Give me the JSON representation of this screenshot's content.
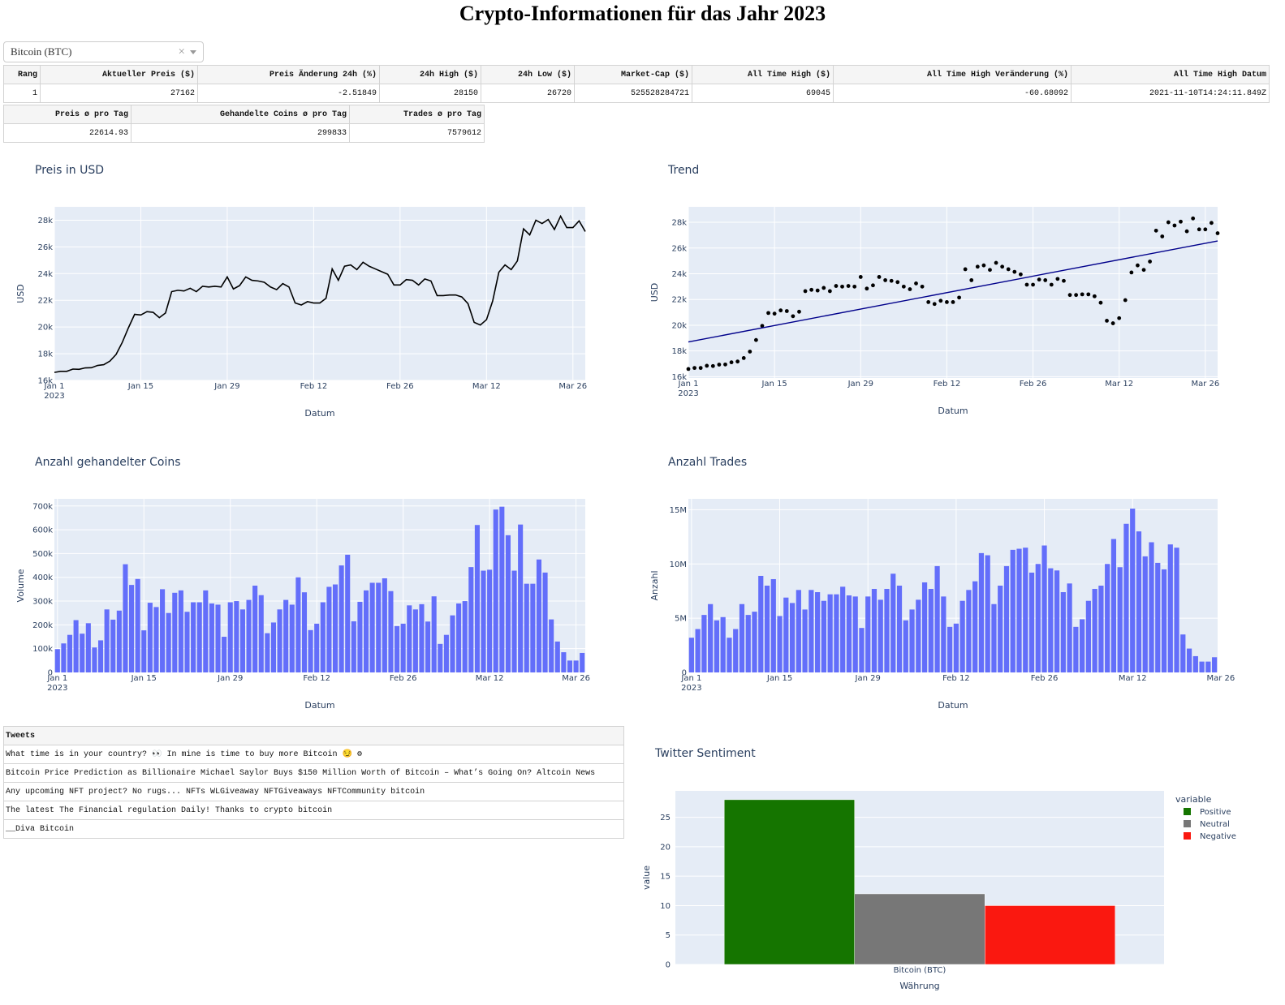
{
  "title": "Crypto-Informationen für das Jahr 2023",
  "dropdown": {
    "value": "Bitcoin (BTC)"
  },
  "table_main": {
    "headers": [
      "Rang",
      "Aktueller Preis ($)",
      "Preis Änderung 24h (%)",
      "24h High ($)",
      "24h Low ($)",
      "Market-Cap ($)",
      "All Time High ($)",
      "All Time High Veränderung (%)",
      "All Time High Datum"
    ],
    "row": [
      "1",
      "27162",
      "-2.51849",
      "28150",
      "26720",
      "525528284721",
      "69045",
      "-60.68092",
      "2021-11-10T14:24:11.849Z"
    ]
  },
  "table_avg": {
    "headers": [
      "Preis ø pro Tag",
      "Gehandelte Coins ø pro Tag",
      "Trades ø pro Tag"
    ],
    "row": [
      "22614.93",
      "299833",
      "7579612"
    ]
  },
  "x_ticks": [
    "Jan 1",
    "Jan 15",
    "Jan 29",
    "Feb 12",
    "Feb 26",
    "Mar 12",
    "Mar 26"
  ],
  "x_year": "2023",
  "chart_data": [
    {
      "type": "line",
      "title": "Preis in USD",
      "xlabel": "Datum",
      "ylabel": "USD",
      "ylim": [
        16000,
        29000
      ],
      "yticks": [
        16000,
        18000,
        20000,
        22000,
        24000,
        26000,
        28000
      ],
      "ytick_labels": [
        "16k",
        "18k",
        "20k",
        "22k",
        "24k",
        "26k",
        "28k"
      ],
      "x_start": "2023-01-01",
      "series": [
        {
          "values": [
            16600,
            16680,
            16680,
            16850,
            16830,
            16940,
            16950,
            17120,
            17180,
            17450,
            17950,
            18850,
            19950,
            20950,
            20900,
            21150,
            21100,
            20700,
            21050,
            22650,
            22750,
            22700,
            22900,
            22650,
            23050,
            23000,
            23050,
            23000,
            23750,
            22850,
            23100,
            23750,
            23500,
            23450,
            23350,
            23000,
            22800,
            23250,
            23000,
            21800,
            21650,
            21900,
            21800,
            21800,
            22150,
            24350,
            23500,
            24550,
            24650,
            24300,
            24850,
            24550,
            24350,
            24150,
            23950,
            23150,
            23150,
            23550,
            23500,
            23150,
            23600,
            23450,
            22350,
            22350,
            22400,
            22400,
            22250,
            21750,
            20350,
            20150,
            20550,
            21950,
            24100,
            24650,
            24300,
            24950,
            27350,
            26900,
            28000,
            27750,
            28050,
            27300,
            28300,
            27450,
            27450,
            27950,
            27150
          ]
        }
      ]
    },
    {
      "type": "scatter",
      "title": "Trend",
      "xlabel": "Datum",
      "ylabel": "USD",
      "ylim": [
        15900,
        29200
      ],
      "yticks": [
        16000,
        18000,
        20000,
        22000,
        24000,
        26000,
        28000
      ],
      "ytick_labels": [
        "16k",
        "18k",
        "20k",
        "22k",
        "24k",
        "26k",
        "28k"
      ],
      "x_start": "2023-01-01",
      "trend": [
        18700,
        26550
      ],
      "series": [
        {
          "values": [
            16600,
            16680,
            16680,
            16850,
            16830,
            16940,
            16950,
            17120,
            17180,
            17450,
            17950,
            18850,
            19950,
            20950,
            20900,
            21150,
            21100,
            20700,
            21050,
            22650,
            22750,
            22700,
            22900,
            22650,
            23050,
            23000,
            23050,
            23000,
            23750,
            22850,
            23100,
            23750,
            23500,
            23450,
            23350,
            23000,
            22800,
            23250,
            23000,
            21800,
            21650,
            21900,
            21800,
            21800,
            22150,
            24350,
            23500,
            24550,
            24650,
            24300,
            24850,
            24550,
            24350,
            24150,
            23950,
            23150,
            23150,
            23550,
            23500,
            23150,
            23600,
            23450,
            22350,
            22350,
            22400,
            22400,
            22250,
            21750,
            20350,
            20150,
            20550,
            21950,
            24100,
            24650,
            24300,
            24950,
            27350,
            26900,
            28000,
            27750,
            28050,
            27300,
            28300,
            27450,
            27450,
            27950,
            27150
          ]
        }
      ]
    },
    {
      "type": "bar",
      "title": "Anzahl gehandelter Coins",
      "xlabel": "Datum",
      "ylabel": "Volume",
      "ylim": [
        0,
        730000
      ],
      "yticks": [
        0,
        100000,
        200000,
        300000,
        400000,
        500000,
        600000,
        700000
      ],
      "ytick_labels": [
        "0",
        "100k",
        "200k",
        "300k",
        "400k",
        "500k",
        "600k",
        "700k"
      ],
      "x_start": "2023-01-01",
      "series": [
        {
          "values": [
            98000,
            122000,
            158000,
            220000,
            163000,
            207000,
            105000,
            135000,
            265000,
            222000,
            260000,
            455000,
            368000,
            393000,
            177000,
            293000,
            275000,
            350000,
            250000,
            335000,
            345000,
            255000,
            295000,
            295000,
            345000,
            290000,
            285000,
            150000,
            295000,
            300000,
            265000,
            305000,
            365000,
            325000,
            165000,
            210000,
            265000,
            305000,
            285000,
            400000,
            337000,
            178000,
            205000,
            295000,
            360000,
            370000,
            450000,
            495000,
            215000,
            297000,
            345000,
            377000,
            377000,
            396000,
            342000,
            195000,
            205000,
            282000,
            265000,
            287000,
            214000,
            320000,
            120000,
            158000,
            240000,
            290000,
            300000,
            443000,
            620000,
            428000,
            432000,
            685000,
            697000,
            577000,
            428000,
            622000,
            373000,
            373000,
            475000,
            420000,
            223000,
            130000,
            85000,
            50000,
            50000,
            82000
          ]
        }
      ]
    },
    {
      "type": "bar",
      "title": "Anzahl Trades",
      "xlabel": "Datum",
      "ylabel": "Anzahl",
      "ylim": [
        0,
        16000000
      ],
      "yticks": [
        0,
        5000000,
        10000000,
        15000000
      ],
      "ytick_labels": [
        "0",
        "5M",
        "10M",
        "15M"
      ],
      "x_start": "2023-01-01",
      "series": [
        {
          "values": [
            3200000,
            4000000,
            5300000,
            6300000,
            4800000,
            5100000,
            3200000,
            4000000,
            6300000,
            5300000,
            5600000,
            8900000,
            8000000,
            8600000,
            5200000,
            6900000,
            6400000,
            7600000,
            5800000,
            7600000,
            7400000,
            6600000,
            7200000,
            7200000,
            7900000,
            7100000,
            7000000,
            4100000,
            7000000,
            7700000,
            6700000,
            7700000,
            9100000,
            8000000,
            4800000,
            5800000,
            6700000,
            8300000,
            7700000,
            9800000,
            7000000,
            4200000,
            4500000,
            6600000,
            7600000,
            8400000,
            11000000,
            10800000,
            6300000,
            8000000,
            9800000,
            11300000,
            11400000,
            11500000,
            9200000,
            10000000,
            11700000,
            9600000,
            9400000,
            7400000,
            8200000,
            4200000,
            4900000,
            6600000,
            7700000,
            8000000,
            10000000,
            12300000,
            9700000,
            13700000,
            15100000,
            13000000,
            10700000,
            12000000,
            10100000,
            9500000,
            11800000,
            11500000,
            3500000,
            2200000,
            1500000,
            1000000,
            1000000,
            1400000
          ]
        }
      ]
    },
    {
      "type": "bar",
      "title": "Twitter Sentiment",
      "xlabel": "Währung",
      "ylabel": "value",
      "ylim": [
        0,
        29.5
      ],
      "yticks": [
        0,
        5,
        10,
        15,
        20,
        25
      ],
      "ytick_labels": [
        "0",
        "5",
        "10",
        "15",
        "20",
        "25"
      ],
      "categories": [
        "Bitcoin (BTC)"
      ],
      "legend_title": "variable",
      "legend_position": "top-right",
      "series": [
        {
          "name": "Positive",
          "values": [
            28
          ],
          "color": "#157500"
        },
        {
          "name": "Neutral",
          "values": [
            12
          ],
          "color": "#777777"
        },
        {
          "name": "Negative",
          "values": [
            10
          ],
          "color": "#fa1810"
        }
      ]
    }
  ],
  "tweets": {
    "header": "Tweets",
    "rows": [
      "What time is in your country? 👀 In mine is time to buy more Bitcoin 😏 ⚙",
      "Bitcoin Price Prediction as Billionaire Michael Saylor Buys $150 Million Worth of Bitcoin – What’s Going On? Altcoin News",
      "Any upcoming NFT project? No rugs... NFTs WLGiveaway NFTGiveaways NFTCommunity bitcoin",
      "The latest The Financial regulation Daily! Thanks to crypto bitcoin",
      "__Diva Bitcoin"
    ]
  },
  "colors": {
    "plot_bg": "#e5ecf6",
    "bar": "#636efa",
    "trend_line": "#00008b",
    "line": "#000000"
  }
}
